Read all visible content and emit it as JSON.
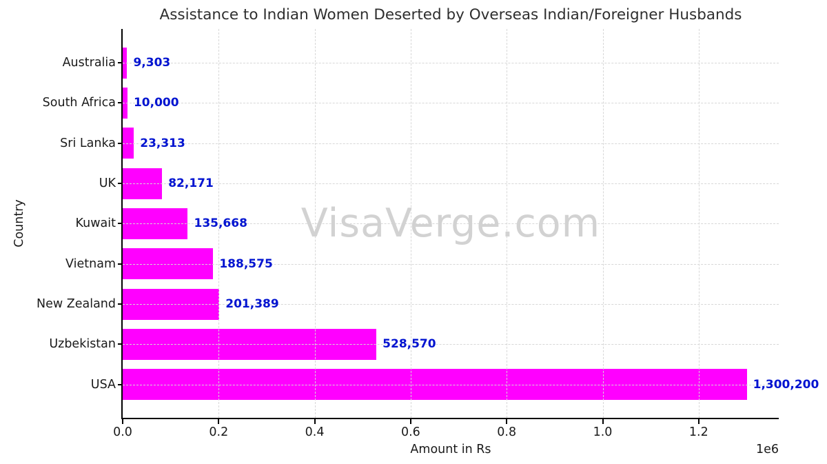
{
  "watermark": "VisaVerge.com",
  "colors": {
    "bar": "#ff00ff",
    "value_label": "#0013d0",
    "grid": "#d7d7d7",
    "text": "#1a1a1a",
    "title": "#2e2e2e",
    "watermark": "#d2d2d2",
    "background": "#ffffff",
    "spine": "#000000"
  },
  "chart_data": {
    "type": "bar",
    "orientation": "horizontal",
    "title": "Assistance to Indian Women Deserted by Overseas Indian/Foreigner Husbands",
    "xlabel": "Amount in Rs",
    "ylabel": "Country",
    "categories": [
      "Australia",
      "South Africa",
      "Sri Lanka",
      "UK",
      "Kuwait",
      "Vietnam",
      "New Zealand",
      "Uzbekistan",
      "USA"
    ],
    "values": [
      9303,
      10000,
      23313,
      82171,
      135668,
      188575,
      201389,
      528570,
      1300200
    ],
    "value_labels": [
      "9,303",
      "10,000",
      "23,313",
      "82,171",
      "135,668",
      "188,575",
      "201,389",
      "528,570",
      "1,300,200"
    ],
    "xlim": [
      0,
      1366800
    ],
    "xticks": [
      0,
      200000,
      400000,
      600000,
      800000,
      1000000,
      1200000
    ],
    "xtick_labels": [
      "0.0",
      "0.2",
      "0.4",
      "0.6",
      "0.8",
      "1.0",
      "1.2"
    ],
    "axis_offset_label": "1e6",
    "grid": "dashed",
    "legend_position": "none",
    "bar_color": "#ff00ff"
  }
}
